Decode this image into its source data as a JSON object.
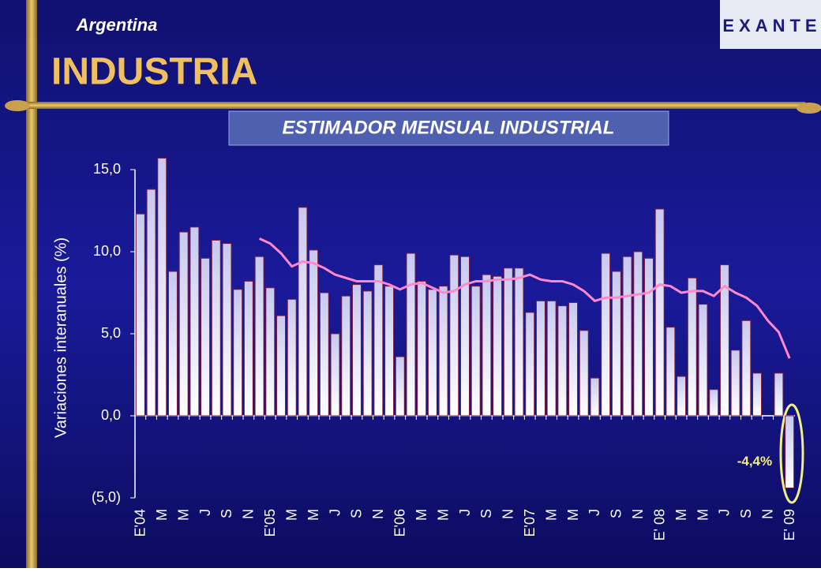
{
  "header": {
    "country": "Argentina",
    "title": "INDUSTRIA",
    "logo": "EXANTE"
  },
  "chart_data": {
    "type": "bar",
    "title": "ESTIMADOR MENSUAL INDUSTRIAL",
    "y_label": "Variaciones interanuales (%)",
    "categories": [
      "E'04",
      null,
      "M",
      null,
      "M",
      null,
      "J",
      null,
      "S",
      null,
      "N",
      null,
      "E'05",
      null,
      "M",
      null,
      "M",
      null,
      "J",
      null,
      "S",
      null,
      "N",
      null,
      "E'06",
      null,
      "M",
      null,
      "M",
      null,
      "J",
      null,
      "S",
      null,
      "N",
      null,
      "E'07",
      null,
      "M",
      null,
      "M",
      null,
      "J",
      null,
      "S",
      null,
      "N",
      null,
      "E' 08",
      null,
      "M",
      null,
      "M",
      null,
      "J",
      null,
      "S",
      null,
      "N",
      null,
      "E' 09"
    ],
    "series": [
      {
        "type": "bar",
        "color": "#c8c8f0",
        "values": [
          12.3,
          13.8,
          15.7,
          8.8,
          11.2,
          11.5,
          9.6,
          10.7,
          10.5,
          7.7,
          8.2,
          9.7,
          7.8,
          6.1,
          7.1,
          12.7,
          10.1,
          7.5,
          5.0,
          7.3,
          8.0,
          7.6,
          9.2,
          7.9,
          3.6,
          9.9,
          8.2,
          7.7,
          7.9,
          9.8,
          9.7,
          7.9,
          8.6,
          8.5,
          9.0,
          9.0,
          6.3,
          7.0,
          7.0,
          6.7,
          6.9,
          5.2,
          2.3,
          9.9,
          8.8,
          9.7,
          10.0,
          9.6,
          12.6,
          5.4,
          2.4,
          8.4,
          6.8,
          1.6,
          9.2,
          4.0,
          5.8,
          2.6,
          null,
          2.6,
          -4.4
        ],
        "value_labels": [
          null,
          null,
          null,
          null,
          null,
          null,
          null,
          null,
          null,
          null,
          null,
          null,
          null,
          null,
          null,
          null,
          null,
          null,
          null,
          null,
          null,
          null,
          null,
          null,
          null,
          null,
          null,
          null,
          null,
          null,
          null,
          null,
          null,
          null,
          null,
          null,
          null,
          null,
          null,
          null,
          null,
          null,
          null,
          null,
          null,
          null,
          null,
          null,
          null,
          null,
          null,
          null,
          null,
          null,
          null,
          null,
          null,
          null,
          null,
          null,
          "-4,4%"
        ]
      },
      {
        "type": "line",
        "color": "#ff88cc",
        "values": [
          null,
          null,
          null,
          null,
          null,
          null,
          null,
          null,
          null,
          null,
          null,
          10.8,
          10.5,
          9.9,
          9.1,
          9.4,
          9.3,
          9.0,
          8.6,
          8.4,
          8.2,
          8.2,
          8.2,
          8.0,
          7.7,
          8.0,
          8.1,
          7.8,
          7.5,
          7.6,
          8.0,
          8.2,
          8.2,
          8.3,
          8.3,
          8.4,
          8.6,
          8.3,
          8.2,
          8.2,
          8.0,
          7.6,
          7.0,
          7.2,
          7.2,
          7.3,
          7.4,
          7.5,
          8.0,
          7.9,
          7.5,
          7.6,
          7.6,
          7.3,
          7.9,
          7.5,
          7.2,
          6.7,
          5.8,
          5.1,
          3.5
        ]
      }
    ],
    "ylim": [
      -5,
      15
    ],
    "yticks": [
      {
        "value": -5,
        "label": "(5,0)"
      },
      {
        "value": 0,
        "label": "0,0"
      },
      {
        "value": 5,
        "label": "5,0"
      },
      {
        "value": 10,
        "label": "10,0"
      },
      {
        "value": 15,
        "label": "15,0"
      }
    ]
  }
}
